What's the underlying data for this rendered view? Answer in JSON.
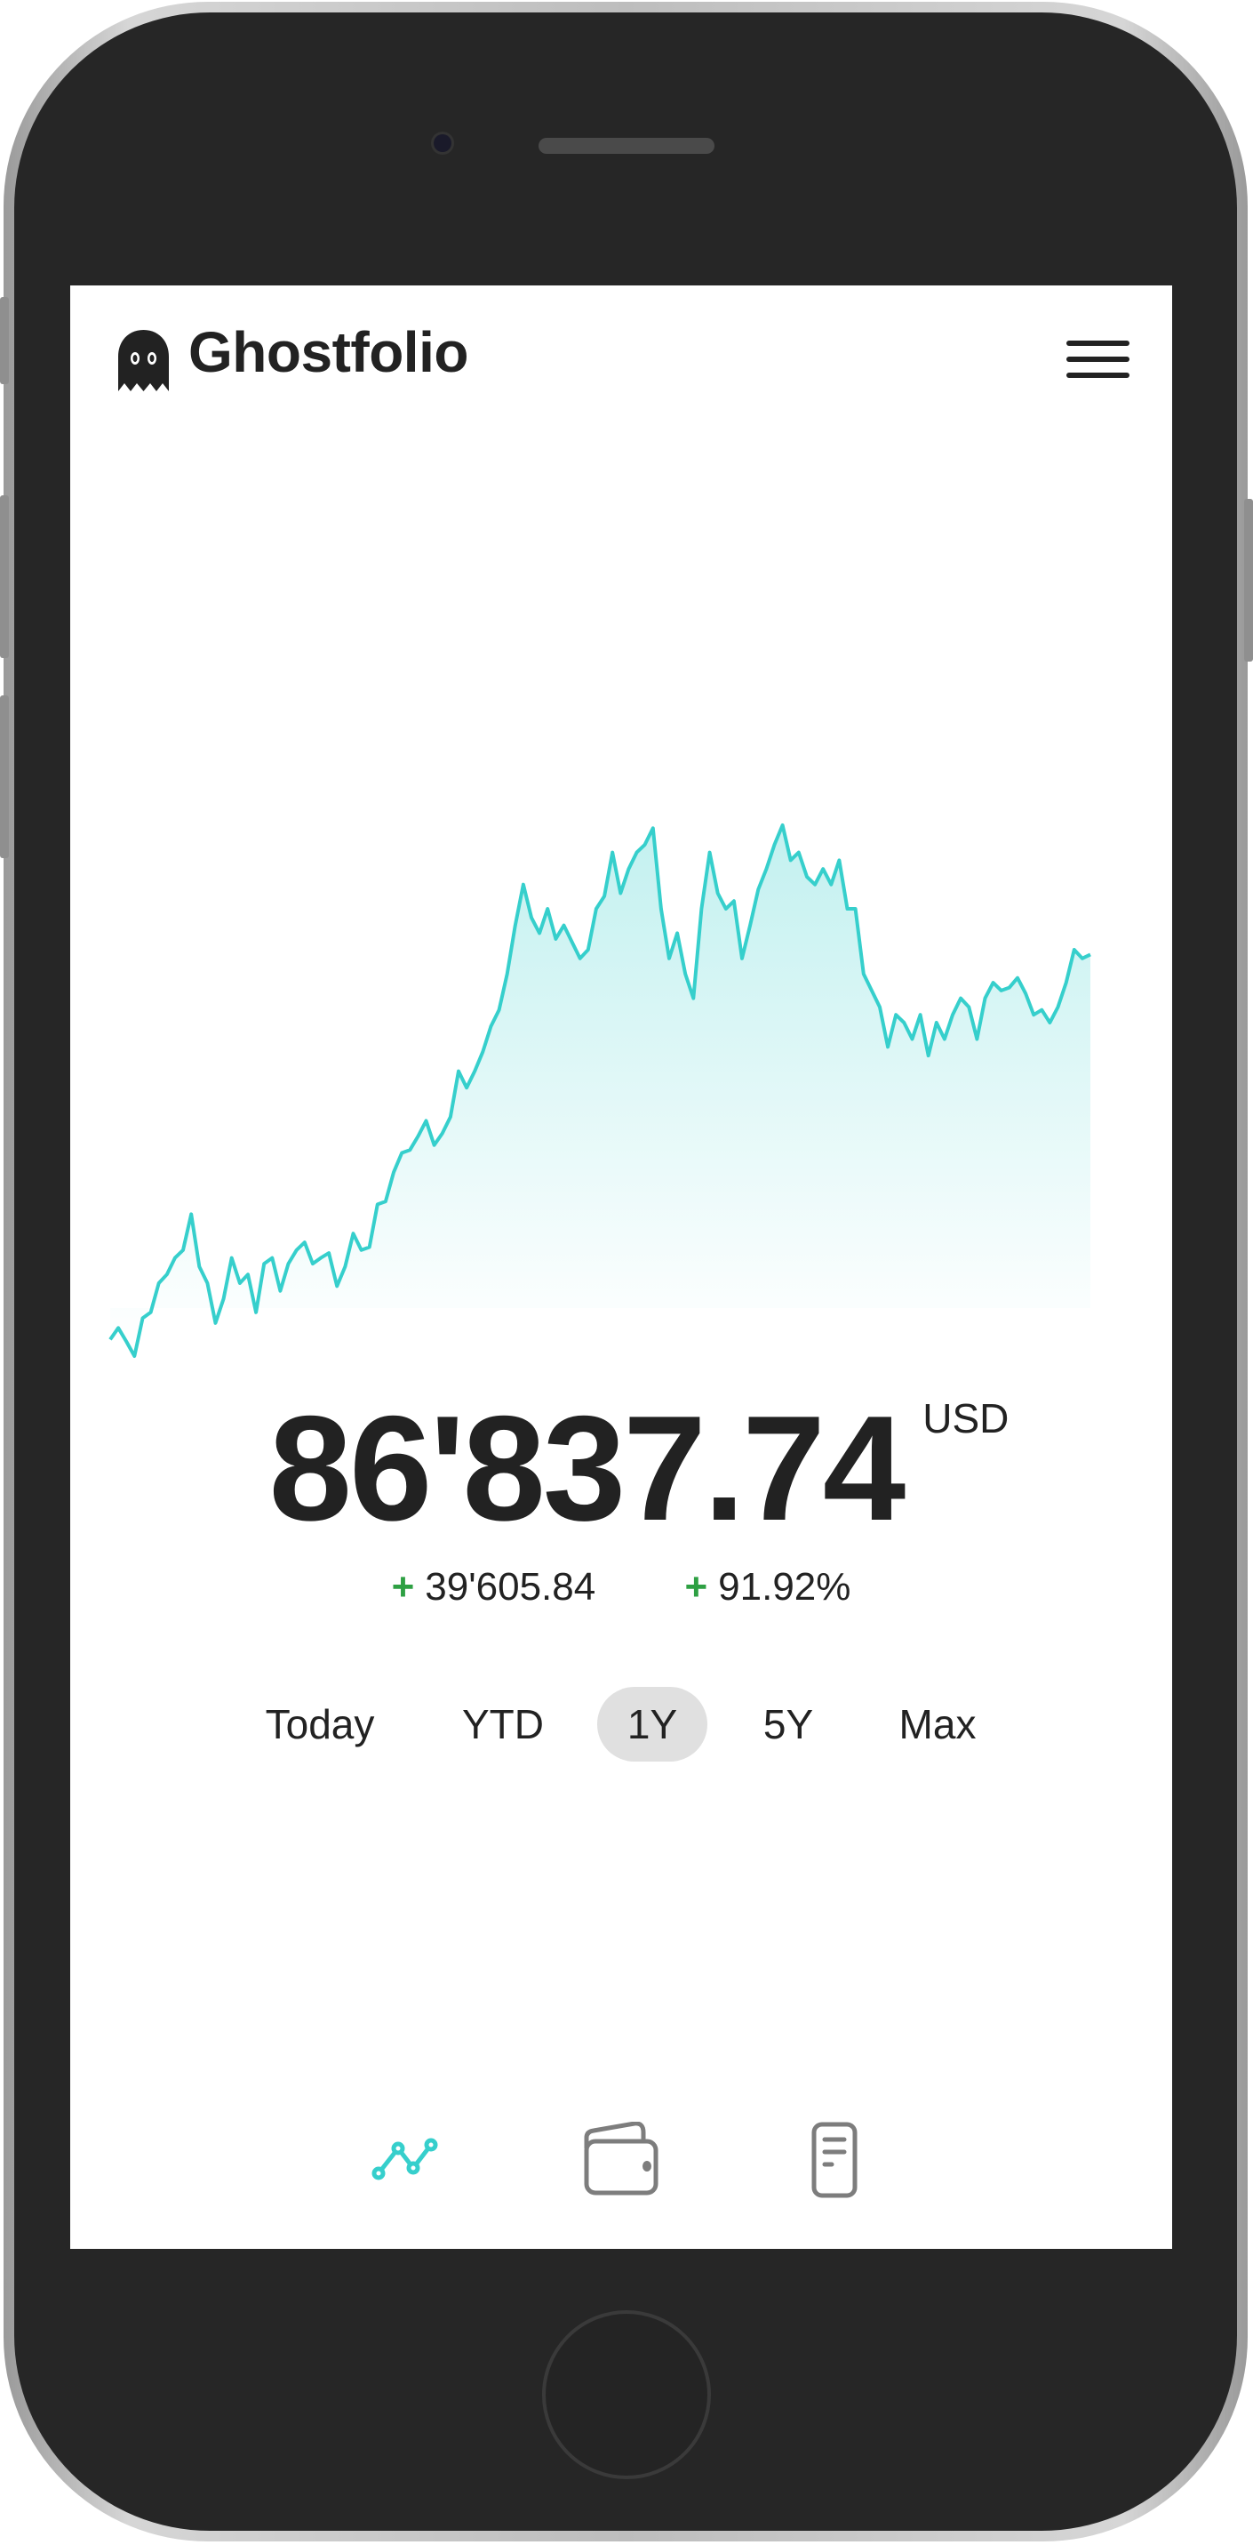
{
  "app": {
    "name": "Ghostfolio",
    "logo_icon": "ghost-icon",
    "menu_icon": "hamburger-menu-icon"
  },
  "portfolio": {
    "value": "86'837.74",
    "currency": "USD",
    "change_absolute": "39'605.84",
    "change_percent": "91.92%",
    "change_sign": "+",
    "positive_color": "#2ea043"
  },
  "range_tabs": {
    "items": [
      {
        "label": "Today",
        "active": false
      },
      {
        "label": "YTD",
        "active": false
      },
      {
        "label": "1Y",
        "active": true
      },
      {
        "label": "5Y",
        "active": false
      },
      {
        "label": "Max",
        "active": false
      }
    ]
  },
  "bottom_nav": {
    "items": [
      {
        "icon": "line-chart-icon",
        "active": true
      },
      {
        "icon": "wallet-icon",
        "active": false
      },
      {
        "icon": "document-icon",
        "active": false
      }
    ],
    "active_color": "#36cfcc",
    "inactive_color": "#7d7d7d"
  },
  "chart_data": {
    "type": "area",
    "title": "",
    "xlabel": "",
    "ylabel": "",
    "grid": false,
    "axes_visible": false,
    "line_color": "#36cfcc",
    "ylim": [
      45500,
      100100
    ],
    "values": [
      47200,
      48400,
      47000,
      45500,
      49400,
      50000,
      53000,
      53900,
      55600,
      56400,
      60100,
      54700,
      53000,
      48900,
      51400,
      55600,
      53000,
      53900,
      50000,
      55000,
      55600,
      52200,
      55000,
      56400,
      57200,
      55000,
      55600,
      56100,
      52700,
      54700,
      58100,
      56400,
      56700,
      61100,
      61400,
      64400,
      66400,
      66700,
      68100,
      69700,
      67200,
      68400,
      70100,
      74800,
      73100,
      74800,
      76800,
      79400,
      81100,
      84800,
      89800,
      94000,
      90600,
      89000,
      91500,
      88400,
      89800,
      88100,
      86400,
      87300,
      91500,
      92800,
      97300,
      93100,
      95600,
      97300,
      98100,
      99800,
      91500,
      86400,
      89000,
      84800,
      82300,
      91500,
      97300,
      93100,
      91500,
      92300,
      86400,
      89800,
      93500,
      95600,
      98100,
      100100,
      96500,
      97300,
      94800,
      94000,
      95600,
      94000,
      96500,
      91500,
      91500,
      84800,
      83100,
      81400,
      77300,
      80600,
      79800,
      78100,
      80600,
      76400,
      79800,
      78100,
      80600,
      82300,
      81400,
      78100,
      82300,
      83900,
      83100,
      83400,
      84400,
      82800,
      80600,
      81100,
      79800,
      81400,
      83900,
      87300,
      86400,
      86800
    ]
  }
}
